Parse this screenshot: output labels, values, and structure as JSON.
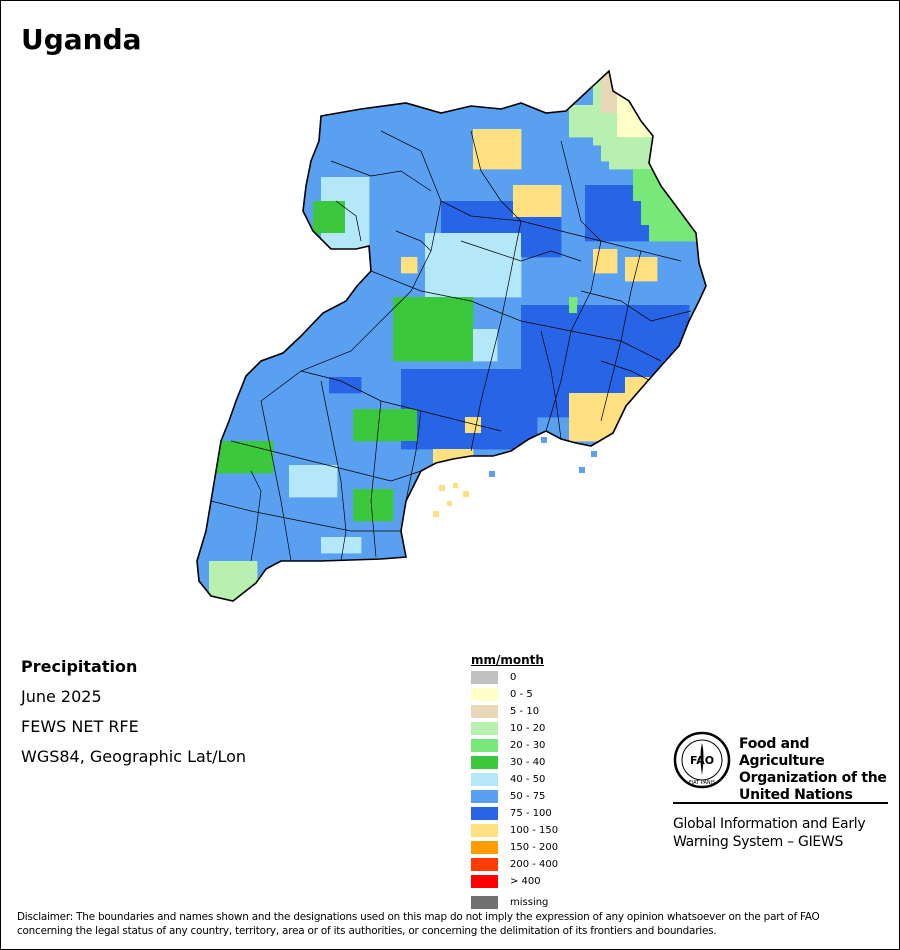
{
  "title": "Uganda",
  "info": {
    "variable": "Precipitation",
    "period": "June 2025",
    "source": "FEWS NET RFE",
    "projection": "WGS84, Geographic Lat/Lon"
  },
  "legend": {
    "title": "mm/month",
    "classes": [
      {
        "label": "0",
        "color": "#c0c0c0"
      },
      {
        "label": "0 - 5",
        "color": "#ffffc8"
      },
      {
        "label": "5 - 10",
        "color": "#e8d8b8"
      },
      {
        "label": "10 - 20",
        "color": "#b8f0b0"
      },
      {
        "label": "20 - 30",
        "color": "#78e878"
      },
      {
        "label": "30 - 40",
        "color": "#3cc83c"
      },
      {
        "label": "40 - 50",
        "color": "#b4e8f8"
      },
      {
        "label": "50 - 75",
        "color": "#5aa0f0"
      },
      {
        "label": "75 - 100",
        "color": "#2864e6"
      },
      {
        "label": "100 - 150",
        "color": "#ffe080"
      },
      {
        "label": "150 - 200",
        "color": "#ff9c00"
      },
      {
        "label": "200 - 400",
        "color": "#ff3c00"
      },
      {
        "label": "> 400",
        "color": "#ff0000"
      },
      {
        "label": "missing",
        "color": "#707070"
      }
    ]
  },
  "organization": {
    "name_line1": "Food and Agriculture",
    "name_line2": "Organization of the",
    "name_line3": "United Nations",
    "emblem_text": "FAO",
    "emblem_motto": "FIAT PANIS",
    "system_line1": "Global Information and Early",
    "system_line2": "Warning System – GIEWS"
  },
  "disclaimer": {
    "line1": "Disclaimer: The boundaries and names shown and the designations used on this map do not imply the expression of any opinion whatsoever on the part of FAO",
    "line2": "concerning the legal status of any country, territory, area or of its authorities, or concerning the delimitation of its frontiers and boundaries."
  }
}
